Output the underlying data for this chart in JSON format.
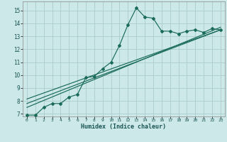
{
  "xlabel": "Humidex (Indice chaleur)",
  "bg_color": "#cce8e8",
  "grid_color": "#aacccc",
  "line_color": "#1a6b5a",
  "xlim": [
    -0.5,
    23.5
  ],
  "ylim": [
    6.8,
    15.7
  ],
  "x_ticks": [
    0,
    1,
    2,
    3,
    4,
    5,
    6,
    7,
    8,
    9,
    10,
    11,
    12,
    13,
    14,
    15,
    16,
    17,
    18,
    19,
    20,
    21,
    22,
    23
  ],
  "y_ticks": [
    7,
    8,
    9,
    10,
    11,
    12,
    13,
    14,
    15
  ],
  "humidex_x": [
    0,
    1,
    2,
    3,
    4,
    5,
    6,
    7,
    8,
    9,
    10,
    11,
    12,
    13,
    14,
    15,
    16,
    17,
    18,
    19,
    20,
    21,
    22,
    23
  ],
  "humidex_y": [
    6.9,
    6.9,
    7.5,
    7.8,
    7.8,
    8.3,
    8.5,
    9.8,
    9.9,
    10.5,
    11.0,
    12.3,
    13.9,
    15.2,
    14.5,
    14.4,
    13.4,
    13.4,
    13.2,
    13.4,
    13.5,
    13.3,
    13.6,
    13.5
  ],
  "trend1_x": [
    0,
    23
  ],
  "trend1_y": [
    7.5,
    13.7
  ],
  "trend2_x": [
    0,
    23
  ],
  "trend2_y": [
    7.8,
    13.5
  ],
  "trend3_x": [
    0,
    23
  ],
  "trend3_y": [
    8.15,
    13.5
  ]
}
